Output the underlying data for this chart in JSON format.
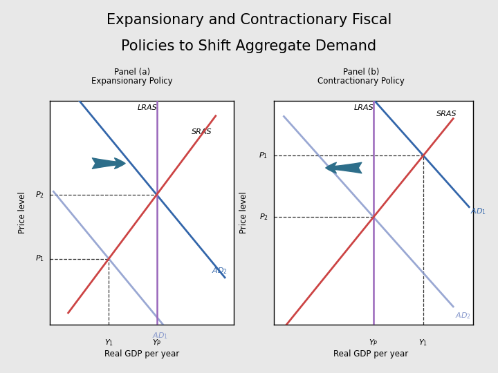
{
  "title_line1": "Expansionary and Contractionary Fiscal",
  "title_line2": "Policies to Shift Aggregate Demand",
  "title_fontsize": 15,
  "background_color": "#e8e8e8",
  "panel_bg": "#ffffff",
  "panel_a_title": "Panel (a)",
  "panel_a_subtitle": "Expansionary Policy",
  "panel_b_title": "Panel (b)",
  "panel_b_subtitle": "Contractionary Policy",
  "xlabel": "Real GDP per year",
  "ylabel": "Price level",
  "lras_color": "#9966bb",
  "sras_color": "#cc4444",
  "ad_dark_color": "#3366aa",
  "ad_light_color": "#8899cc",
  "dashed_color": "#333333",
  "arrow_color": "#2d6e8a"
}
